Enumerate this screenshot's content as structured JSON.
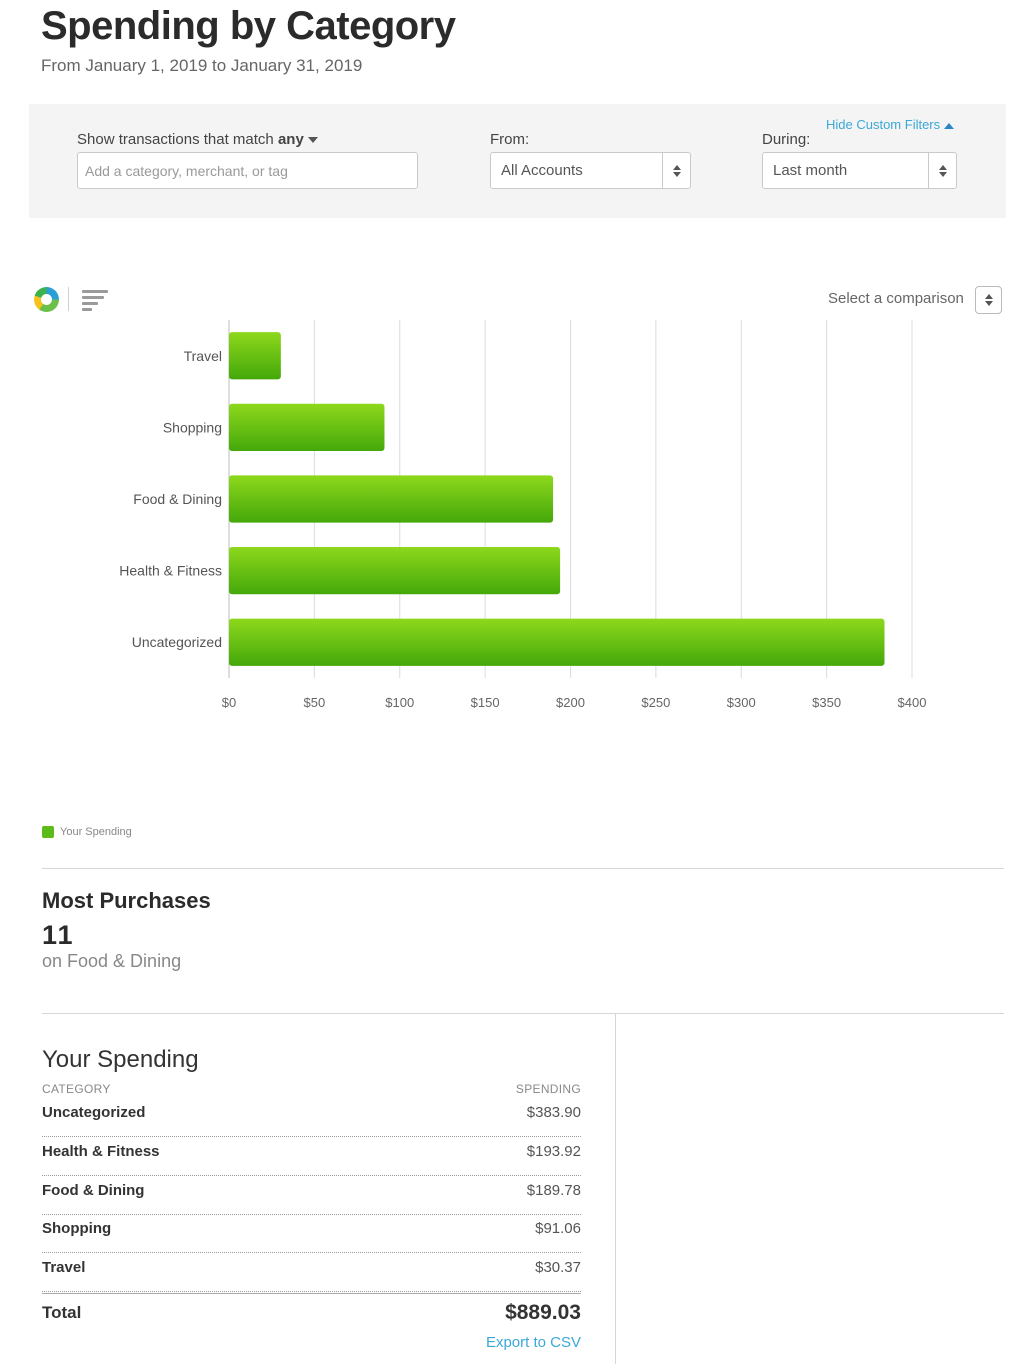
{
  "header": {
    "title": "Spending by Category",
    "subtitle": "From January 1, 2019 to January 31, 2019"
  },
  "filters": {
    "match_label": "Show transactions that match",
    "match_value": "any",
    "search_placeholder": "Add a category, merchant, or tag",
    "search_value": "",
    "from_label": "From:",
    "from_value": "All Accounts",
    "during_label": "During:",
    "during_value": "Last month",
    "hide_link": "Hide Custom Filters"
  },
  "chart_controls": {
    "donut_view_icon": "donut-chart-icon",
    "bar_view_icon": "bar-chart-icon",
    "comparison_label": "Select a comparison"
  },
  "chart_data": {
    "type": "bar",
    "orientation": "horizontal",
    "categories": [
      "Travel",
      "Shopping",
      "Food & Dining",
      "Health & Fitness",
      "Uncategorized"
    ],
    "series": [
      {
        "name": "Your Spending",
        "values": [
          30.37,
          91.06,
          189.78,
          193.92,
          383.9
        ]
      }
    ],
    "x_ticks": [
      "$0",
      "$50",
      "$100",
      "$150",
      "$200",
      "$250",
      "$300",
      "$350",
      "$400"
    ],
    "xlim": [
      0,
      400
    ],
    "grid": true,
    "bar_color_top": "#8ed81c",
    "bar_color_bottom": "#44a80a",
    "legend": {
      "placement": "bottom-left"
    }
  },
  "most_purchases": {
    "title": "Most Purchases",
    "count": "11",
    "category": "on Food & Dining"
  },
  "your_spending": {
    "title": "Your Spending",
    "col_category": "CATEGORY",
    "col_spending": "SPENDING",
    "rows": [
      {
        "category": "Uncategorized",
        "amount": "$383.90"
      },
      {
        "category": "Health & Fitness",
        "amount": "$193.92"
      },
      {
        "category": "Food & Dining",
        "amount": "$189.78"
      },
      {
        "category": "Shopping",
        "amount": "$91.06"
      },
      {
        "category": "Travel",
        "amount": "$30.37"
      }
    ],
    "total_label": "Total",
    "total_amount": "$889.03",
    "export_link": "Export to CSV"
  },
  "colors": {
    "accent_link": "#3aa8d8",
    "legend_swatch": "#5cbb1a"
  }
}
